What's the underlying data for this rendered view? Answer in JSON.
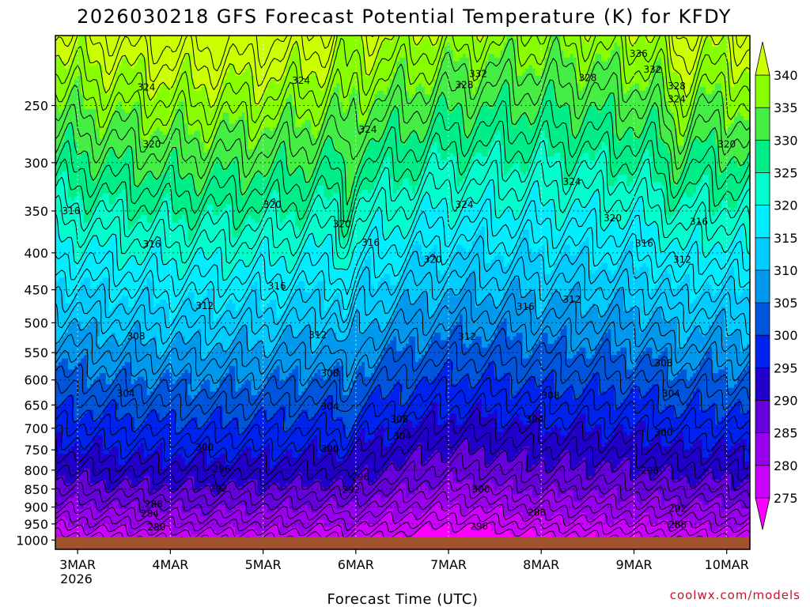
{
  "chart_data": {
    "type": "heatmap",
    "title": "2026030218 GFS Forecast Potential Temperature (K) for KFDY",
    "xlabel": "Forecast Time (UTC)",
    "ylabel": "",
    "credit": "coolwx.com/models",
    "x_ticks": [
      {
        "label": "3MAR",
        "sub": "2026",
        "day": 0
      },
      {
        "label": "4MAR",
        "day": 1
      },
      {
        "label": "5MAR",
        "day": 2
      },
      {
        "label": "6MAR",
        "day": 3
      },
      {
        "label": "7MAR",
        "day": 4
      },
      {
        "label": "8MAR",
        "day": 5
      },
      {
        "label": "9MAR",
        "day": 6
      },
      {
        "label": "10MAR",
        "day": 7
      }
    ],
    "xlim": [
      -0.24,
      7.25
    ],
    "y_scale": "log",
    "ylim": [
      1030,
      200
    ],
    "y_ticks": [
      250,
      300,
      350,
      400,
      450,
      500,
      550,
      600,
      650,
      700,
      750,
      800,
      850,
      900,
      950,
      1000
    ],
    "colorbar": {
      "levels": [
        275,
        280,
        285,
        290,
        295,
        300,
        305,
        310,
        315,
        320,
        325,
        330,
        335,
        340
      ],
      "colors": [
        "#ff00ff",
        "#cc00ff",
        "#9900ee",
        "#6600dd",
        "#2200cc",
        "#0022ee",
        "#0055dd",
        "#0099ee",
        "#00ccff",
        "#00eeff",
        "#00ffcc",
        "#00ee88",
        "#44ee44",
        "#88ff00",
        "#ccff00"
      ]
    },
    "contour_interval": 2,
    "contour_labels": [
      {
        "v": 336,
        "t": 6.05,
        "p": 212
      },
      {
        "v": 332,
        "t": 6.2,
        "p": 223
      },
      {
        "v": 332,
        "t": 4.32,
        "p": 226
      },
      {
        "v": 328,
        "t": 4.17,
        "p": 234
      },
      {
        "v": 328,
        "t": 5.5,
        "p": 229
      },
      {
        "v": 328,
        "t": 6.46,
        "p": 235
      },
      {
        "v": 324,
        "t": 0.74,
        "p": 236
      },
      {
        "v": 324,
        "t": 2.41,
        "p": 231
      },
      {
        "v": 324,
        "t": 6.46,
        "p": 245
      },
      {
        "v": 324,
        "t": 3.13,
        "p": 270
      },
      {
        "v": 324,
        "t": 4.17,
        "p": 343
      },
      {
        "v": 324,
        "t": 5.33,
        "p": 319
      },
      {
        "v": 320,
        "t": 0.8,
        "p": 283
      },
      {
        "v": 320,
        "t": 2.1,
        "p": 343
      },
      {
        "v": 320,
        "t": 2.85,
        "p": 365
      },
      {
        "v": 320,
        "t": 7.0,
        "p": 283
      },
      {
        "v": 320,
        "t": 5.77,
        "p": 358
      },
      {
        "v": 320,
        "t": 3.83,
        "p": 409
      },
      {
        "v": 316,
        "t": -0.07,
        "p": 350
      },
      {
        "v": 316,
        "t": 0.8,
        "p": 389
      },
      {
        "v": 316,
        "t": 3.16,
        "p": 387
      },
      {
        "v": 316,
        "t": 6.7,
        "p": 362
      },
      {
        "v": 316,
        "t": 6.11,
        "p": 388
      },
      {
        "v": 316,
        "t": 2.15,
        "p": 445
      },
      {
        "v": 316,
        "t": 4.83,
        "p": 475
      },
      {
        "v": 312,
        "t": 6.52,
        "p": 409
      },
      {
        "v": 312,
        "t": 1.37,
        "p": 474
      },
      {
        "v": 312,
        "t": 5.33,
        "p": 464
      },
      {
        "v": 312,
        "t": 2.59,
        "p": 520
      },
      {
        "v": 312,
        "t": 4.2,
        "p": 523
      },
      {
        "v": 308,
        "t": 0.63,
        "p": 522
      },
      {
        "v": 308,
        "t": 2.72,
        "p": 588
      },
      {
        "v": 308,
        "t": 6.32,
        "p": 569
      },
      {
        "v": 308,
        "t": 3.47,
        "p": 680
      },
      {
        "v": 308,
        "t": 5.1,
        "p": 631
      },
      {
        "v": 304,
        "t": 0.52,
        "p": 627
      },
      {
        "v": 304,
        "t": 2.72,
        "p": 653
      },
      {
        "v": 304,
        "t": 6.4,
        "p": 627
      },
      {
        "v": 304,
        "t": 3.5,
        "p": 718
      },
      {
        "v": 304,
        "t": 4.93,
        "p": 680
      },
      {
        "v": 300,
        "t": 1.37,
        "p": 744
      },
      {
        "v": 300,
        "t": 2.72,
        "p": 748
      },
      {
        "v": 300,
        "t": 6.32,
        "p": 710
      },
      {
        "v": 300,
        "t": 4.35,
        "p": 850
      },
      {
        "v": 296,
        "t": 1.55,
        "p": 797
      },
      {
        "v": 296,
        "t": 3.05,
        "p": 818
      },
      {
        "v": 296,
        "t": 6.17,
        "p": 801
      },
      {
        "v": 296,
        "t": 4.33,
        "p": 957
      },
      {
        "v": 292,
        "t": 1.52,
        "p": 848
      },
      {
        "v": 292,
        "t": 2.95,
        "p": 853
      },
      {
        "v": 292,
        "t": 6.47,
        "p": 905
      },
      {
        "v": 288,
        "t": 0.82,
        "p": 892
      },
      {
        "v": 288,
        "t": 4.95,
        "p": 916
      },
      {
        "v": 288,
        "t": 6.47,
        "p": 953
      },
      {
        "v": 284,
        "t": 0.78,
        "p": 920
      },
      {
        "v": 280,
        "t": 0.85,
        "p": 960
      }
    ]
  }
}
